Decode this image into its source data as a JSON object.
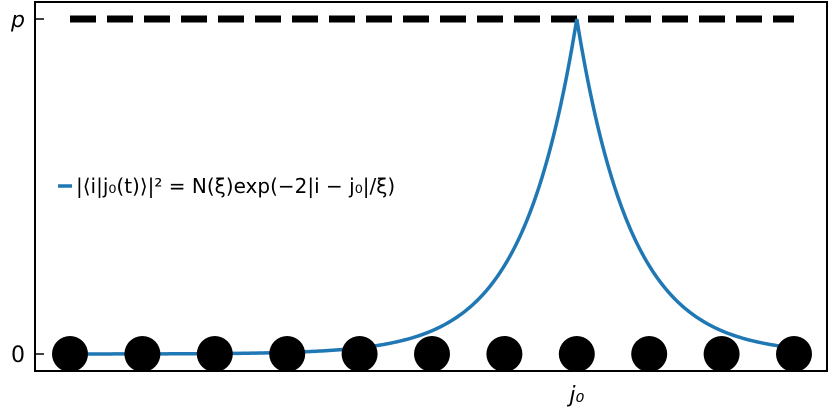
{
  "chart_data": {
    "type": "line",
    "title": "",
    "xlabel": "",
    "ylabel": "",
    "x": [
      0,
      1,
      2,
      3,
      4,
      5,
      6,
      7,
      8,
      9,
      10
    ],
    "xlim": [
      -0.2,
      10.5
    ],
    "ylim": [
      -0.05,
      1.0
    ],
    "xticks": [
      {
        "value": 7,
        "label": "j₀"
      }
    ],
    "yticks": [
      {
        "value": 0,
        "label": "0"
      },
      {
        "value": 1,
        "label": "p"
      }
    ],
    "peak_x": 7,
    "decay_xi": 1.5,
    "series": [
      {
        "name": "|⟨i|j₀(t)⟩|² = N(ξ)exp(−2|i − j₀|/ξ)",
        "style": "solid",
        "color": "#1f77b4",
        "function": "exp(-2|x-7|/1.5)"
      },
      {
        "name": "",
        "style": "dashed",
        "color": "#000000",
        "value": 1
      }
    ],
    "sites": {
      "x": [
        0,
        1,
        2,
        3,
        4,
        5,
        6,
        7,
        8,
        9,
        10
      ],
      "y": 0,
      "color": "#000000"
    },
    "legend_position": "center-left",
    "grid": false
  }
}
